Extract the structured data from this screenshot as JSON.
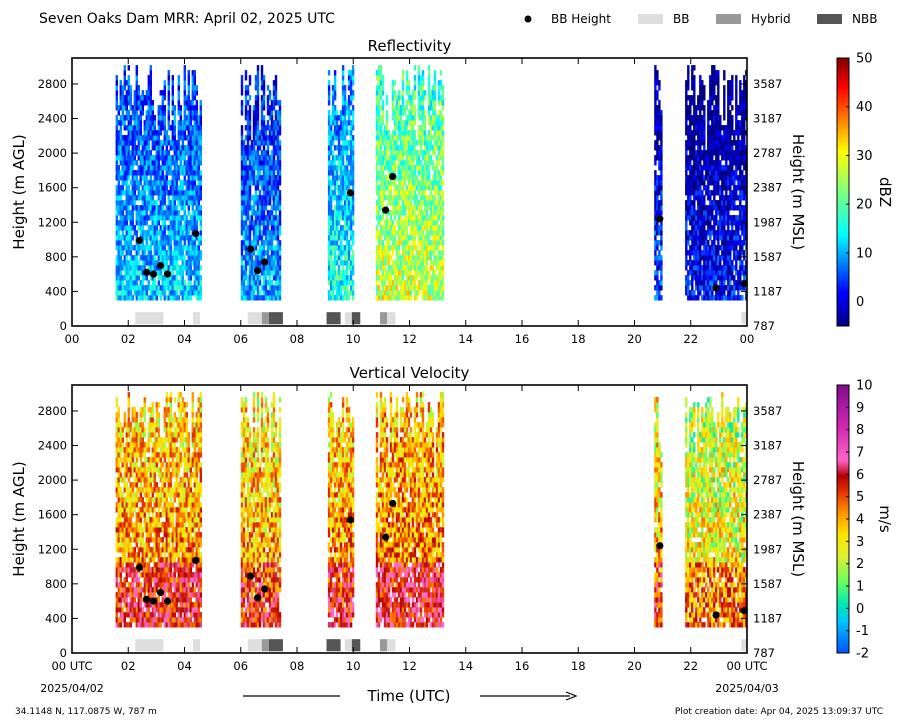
{
  "header": {
    "title": "Seven Oaks Dam MRR:  April 02, 2025 UTC",
    "legend": [
      {
        "label": "BB Height",
        "kind": "dot",
        "color": "#000000"
      },
      {
        "label": "BB",
        "kind": "bar",
        "color": "#dedede"
      },
      {
        "label": "Hybrid",
        "kind": "bar",
        "color": "#999999"
      },
      {
        "label": "NBB",
        "kind": "bar",
        "color": "#555555"
      }
    ]
  },
  "footer": {
    "location": "34.1148 N, 117.0875 W, 787 m",
    "creation": "Plot creation date: Apr 04, 2025 13:09:37 UTC",
    "xtitle": "Time (UTC)",
    "start_tick": "00 UTC",
    "start_date": "2025/04/02",
    "end_tick": "00 UTC",
    "end_date": "2025/04/03"
  },
  "chart_data": [
    {
      "type": "heatmap",
      "title": "Reflectivity",
      "xlabel": "",
      "ylabel": "Height (m AGL)",
      "ylabel_right": "Height (m MSL)",
      "x_ticks": [
        "00",
        "02",
        "04",
        "06",
        "08",
        "10",
        "12",
        "14",
        "16",
        "18",
        "20",
        "22",
        "00"
      ],
      "xlim": [
        0,
        24
      ],
      "ylim": [
        0,
        3100
      ],
      "y_ticks": [
        0,
        400,
        800,
        1200,
        1600,
        2000,
        2400,
        2800
      ],
      "y_ticks_right": [
        "787",
        "1187",
        "1587",
        "1987",
        "2387",
        "2787",
        "3187",
        "3587"
      ],
      "colorbar": {
        "label": "dBZ",
        "min": -5,
        "max": 50,
        "ticks": [
          0,
          10,
          20,
          30,
          40,
          50
        ],
        "scheme": "jet"
      },
      "echo_periods": [
        {
          "start": 1.55,
          "end": 4.6,
          "base": 300,
          "top": 3000,
          "value": 14
        },
        {
          "start": 6.0,
          "end": 7.4,
          "base": 300,
          "top": 3000,
          "value": 12
        },
        {
          "start": 9.1,
          "end": 10.0,
          "base": 300,
          "top": 3000,
          "value": 18
        },
        {
          "start": 10.8,
          "end": 13.2,
          "base": 300,
          "top": 3000,
          "value": 28
        },
        {
          "start": 20.7,
          "end": 20.95,
          "base": 300,
          "top": 3000,
          "value": 6
        },
        {
          "start": 21.8,
          "end": 24.0,
          "base": 300,
          "top": 3000,
          "value": 4
        }
      ],
      "bb_height": [
        {
          "time": 2.4,
          "height": 990
        },
        {
          "time": 2.65,
          "height": 620
        },
        {
          "time": 2.9,
          "height": 600
        },
        {
          "time": 3.15,
          "height": 700
        },
        {
          "time": 3.4,
          "height": 600
        },
        {
          "time": 4.4,
          "height": 1070
        },
        {
          "time": 6.35,
          "height": 890
        },
        {
          "time": 6.6,
          "height": 640
        },
        {
          "time": 6.85,
          "height": 740
        },
        {
          "time": 9.9,
          "height": 1540
        },
        {
          "time": 11.15,
          "height": 1340
        },
        {
          "time": 11.4,
          "height": 1730
        },
        {
          "time": 20.9,
          "height": 1240
        },
        {
          "time": 22.9,
          "height": 440
        },
        {
          "time": 23.9,
          "height": 490
        }
      ],
      "bb_type_bars": [
        {
          "start": 2.25,
          "end": 3.25,
          "type": "BB"
        },
        {
          "start": 4.3,
          "end": 4.55,
          "type": "BB"
        },
        {
          "start": 6.25,
          "end": 6.75,
          "type": "BB"
        },
        {
          "start": 6.75,
          "end": 7.0,
          "type": "Hybrid"
        },
        {
          "start": 7.0,
          "end": 7.5,
          "type": "NBB"
        },
        {
          "start": 9.05,
          "end": 9.55,
          "type": "NBB"
        },
        {
          "start": 9.7,
          "end": 9.95,
          "type": "BB"
        },
        {
          "start": 9.95,
          "end": 10.25,
          "type": "NBB"
        },
        {
          "start": 10.95,
          "end": 11.2,
          "type": "Hybrid"
        },
        {
          "start": 11.2,
          "end": 11.5,
          "type": "BB"
        },
        {
          "start": 23.8,
          "end": 24.0,
          "type": "BB"
        }
      ]
    },
    {
      "type": "heatmap",
      "title": "Vertical Velocity",
      "xlabel": "Time (UTC)",
      "ylabel": "Height (m AGL)",
      "ylabel_right": "Height (m MSL)",
      "x_ticks": [
        "00 UTC",
        "02",
        "04",
        "06",
        "08",
        "10",
        "12",
        "14",
        "16",
        "18",
        "20",
        "22",
        "00 UTC"
      ],
      "xlim": [
        0,
        24
      ],
      "ylim": [
        0,
        3100
      ],
      "y_ticks": [
        0,
        400,
        800,
        1200,
        1600,
        2000,
        2400,
        2800
      ],
      "y_ticks_right": [
        "787",
        "1187",
        "1587",
        "1987",
        "2387",
        "2787",
        "3187",
        "3587"
      ],
      "colorbar": {
        "label": "m/s",
        "min": -2,
        "max": 10,
        "ticks": [
          -2,
          -1,
          0,
          1,
          2,
          3,
          4,
          5,
          6,
          7,
          8,
          9,
          10
        ],
        "scheme": "velocity"
      },
      "echo_periods": [
        {
          "start": 1.55,
          "end": 4.6,
          "base": 300,
          "top": 3000,
          "value": 4.5
        },
        {
          "start": 6.0,
          "end": 7.4,
          "base": 300,
          "top": 3000,
          "value": 4.2
        },
        {
          "start": 9.1,
          "end": 10.0,
          "base": 300,
          "top": 3000,
          "value": 4.5
        },
        {
          "start": 10.8,
          "end": 13.2,
          "base": 300,
          "top": 3000,
          "value": 4.8
        },
        {
          "start": 20.7,
          "end": 20.95,
          "base": 300,
          "top": 3000,
          "value": 4.0
        },
        {
          "start": 21.8,
          "end": 24.0,
          "base": 300,
          "top": 3000,
          "value": 3.2
        }
      ],
      "bb_height": [
        {
          "time": 2.4,
          "height": 990
        },
        {
          "time": 2.65,
          "height": 620
        },
        {
          "time": 2.9,
          "height": 600
        },
        {
          "time": 3.15,
          "height": 700
        },
        {
          "time": 3.4,
          "height": 600
        },
        {
          "time": 4.4,
          "height": 1070
        },
        {
          "time": 6.35,
          "height": 890
        },
        {
          "time": 6.6,
          "height": 640
        },
        {
          "time": 6.85,
          "height": 740
        },
        {
          "time": 9.9,
          "height": 1540
        },
        {
          "time": 11.15,
          "height": 1340
        },
        {
          "time": 11.4,
          "height": 1730
        },
        {
          "time": 20.9,
          "height": 1240
        },
        {
          "time": 22.9,
          "height": 440
        },
        {
          "time": 23.9,
          "height": 490
        }
      ],
      "bb_type_bars": [
        {
          "start": 2.25,
          "end": 3.25,
          "type": "BB"
        },
        {
          "start": 4.3,
          "end": 4.55,
          "type": "BB"
        },
        {
          "start": 6.25,
          "end": 6.75,
          "type": "BB"
        },
        {
          "start": 6.75,
          "end": 7.0,
          "type": "Hybrid"
        },
        {
          "start": 7.0,
          "end": 7.5,
          "type": "NBB"
        },
        {
          "start": 9.05,
          "end": 9.55,
          "type": "NBB"
        },
        {
          "start": 9.7,
          "end": 9.95,
          "type": "BB"
        },
        {
          "start": 9.95,
          "end": 10.25,
          "type": "NBB"
        },
        {
          "start": 10.95,
          "end": 11.2,
          "type": "Hybrid"
        },
        {
          "start": 11.2,
          "end": 11.5,
          "type": "BB"
        },
        {
          "start": 23.8,
          "end": 24.0,
          "type": "BB"
        }
      ]
    }
  ]
}
